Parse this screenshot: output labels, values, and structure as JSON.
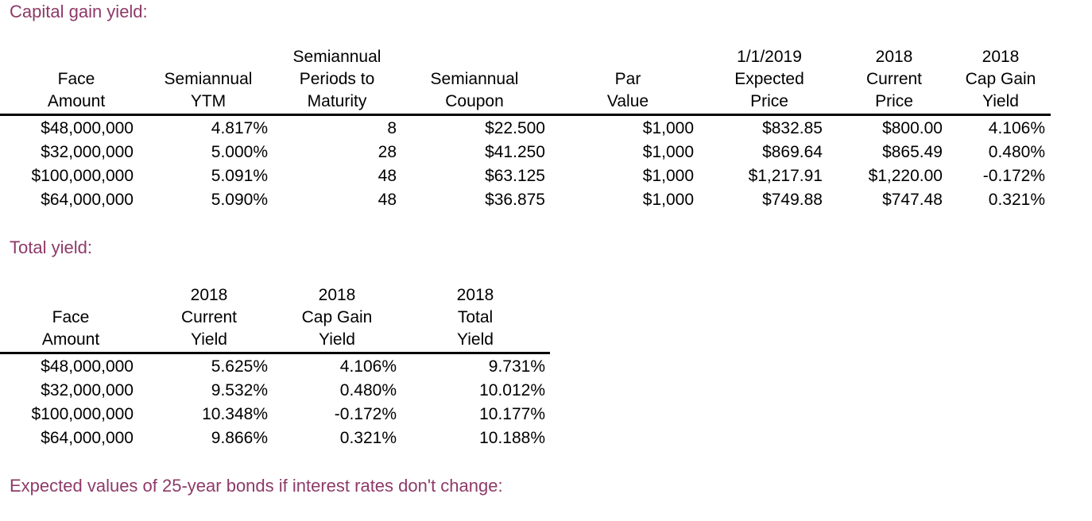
{
  "capital_gain": {
    "title": "Capital gain yield:",
    "headers": [
      {
        "lines": [
          "",
          "Face",
          "Amount"
        ]
      },
      {
        "lines": [
          "",
          "Semiannual",
          "YTM"
        ]
      },
      {
        "lines": [
          "Semiannual",
          "Periods to",
          "Maturity"
        ]
      },
      {
        "lines": [
          "",
          "Semiannual",
          "Coupon"
        ]
      },
      {
        "lines": [
          "",
          "Par",
          "Value"
        ]
      },
      {
        "lines": [
          "1/1/2019",
          "Expected",
          "Price"
        ]
      },
      {
        "lines": [
          "2018",
          "Current",
          "Price"
        ]
      },
      {
        "lines": [
          "2018",
          "Cap Gain",
          "Yield"
        ]
      }
    ],
    "rows": [
      [
        "$48,000,000",
        "4.817%",
        "8",
        "$22.500",
        "$1,000",
        "$832.85",
        "$800.00",
        "4.106%"
      ],
      [
        "$32,000,000",
        "5.000%",
        "28",
        "$41.250",
        "$1,000",
        "$869.64",
        "$865.49",
        "0.480%"
      ],
      [
        "$100,000,000",
        "5.091%",
        "48",
        "$63.125",
        "$1,000",
        "$1,217.91",
        "$1,220.00",
        "-0.172%"
      ],
      [
        "$64,000,000",
        "5.090%",
        "48",
        "$36.875",
        "$1,000",
        "$749.88",
        "$747.48",
        "0.321%"
      ]
    ]
  },
  "total_yield": {
    "title": "Total yield:",
    "headers": [
      {
        "lines": [
          "",
          "Face",
          "Amount"
        ]
      },
      {
        "lines": [
          "2018",
          "Current",
          "Yield"
        ]
      },
      {
        "lines": [
          "2018",
          "Cap Gain",
          "Yield"
        ]
      },
      {
        "lines": [
          "2018",
          "Total",
          "Yield"
        ]
      }
    ],
    "rows": [
      [
        "$48,000,000",
        "5.625%",
        "4.106%",
        "9.731%"
      ],
      [
        "$32,000,000",
        "9.532%",
        "0.480%",
        "10.012%"
      ],
      [
        "$100,000,000",
        "10.348%",
        "-0.172%",
        "10.177%"
      ],
      [
        "$64,000,000",
        "9.866%",
        "0.321%",
        "10.188%"
      ]
    ]
  },
  "expected_values": {
    "title": "Expected values of 25-year bonds if interest rates don't change:"
  }
}
